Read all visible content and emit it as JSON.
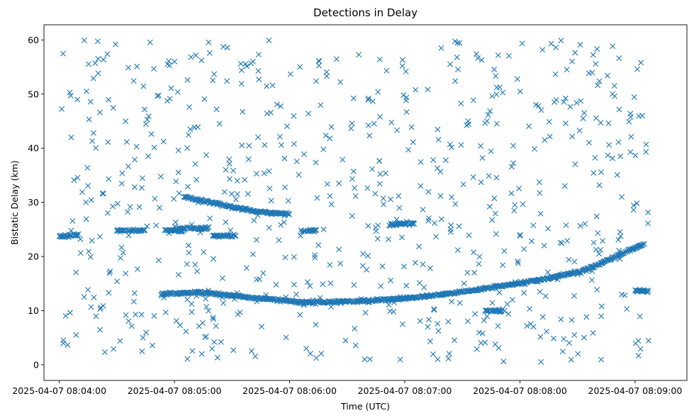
{
  "chart_data": {
    "type": "scatter",
    "title": "Detections in Delay",
    "xlabel": "Time (UTC)",
    "ylabel": "Bistatic Delay (km)",
    "x_type": "datetime",
    "xlim": [
      "2025-04-07 08:03:52",
      "2025-04-07 08:09:27"
    ],
    "ylim": [
      -2.9,
      62.8
    ],
    "x_ticks": [
      "2025-04-07 08:04:00",
      "2025-04-07 08:05:00",
      "2025-04-07 08:06:00",
      "2025-04-07 08:07:00",
      "2025-04-07 08:08:00",
      "2025-04-07 08:09:00"
    ],
    "y_ticks": [
      0,
      10,
      20,
      30,
      40,
      50,
      60
    ],
    "marker": "x",
    "color": "#1f77b4",
    "grid": false,
    "legend": "none",
    "tracks": [
      {
        "time_range": [
          "2025-04-07 08:04:53",
          "2025-04-07 08:09:05"
        ],
        "delay_knots": [
          [
            0,
            13.0
          ],
          [
            20,
            13.4
          ],
          [
            35,
            12.8
          ],
          [
            60,
            12.0
          ],
          [
            75,
            11.5
          ],
          [
            100,
            11.7
          ],
          [
            130,
            12.3
          ],
          [
            160,
            13.6
          ],
          [
            190,
            15.2
          ],
          [
            220,
            17.3
          ],
          [
            252,
            22.4
          ]
        ]
      },
      {
        "time_range": [
          "2025-04-07 08:05:05",
          "2025-04-07 08:06:00"
        ],
        "delay_knots": [
          [
            0,
            31.0
          ],
          [
            23,
            29.3
          ],
          [
            37,
            28.3
          ],
          [
            55,
            27.8
          ]
        ]
      },
      {
        "time_range": [
          "2025-04-07 08:04:00",
          "2025-04-07 08:04:10"
        ],
        "delay_knots": [
          [
            0,
            23.7
          ],
          [
            10,
            24.0
          ]
        ]
      },
      {
        "time_range": [
          "2025-04-07 08:04:30",
          "2025-04-07 08:04:45"
        ],
        "delay_knots": [
          [
            0,
            24.8
          ],
          [
            15,
            24.8
          ]
        ]
      },
      {
        "time_range": [
          "2025-04-07 08:04:55",
          "2025-04-07 08:05:05"
        ],
        "delay_knots": [
          [
            0,
            24.8
          ],
          [
            10,
            24.8
          ]
        ]
      },
      {
        "time_range": [
          "2025-04-07 08:05:02",
          "2025-04-07 08:05:18"
        ],
        "delay_knots": [
          [
            0,
            25.2
          ],
          [
            16,
            25.2
          ]
        ]
      },
      {
        "time_range": [
          "2025-04-07 08:05:20",
          "2025-04-07 08:05:32"
        ],
        "delay_knots": [
          [
            0,
            23.8
          ],
          [
            12,
            23.8
          ]
        ]
      },
      {
        "time_range": [
          "2025-04-07 08:06:06",
          "2025-04-07 08:06:14"
        ],
        "delay_knots": [
          [
            0,
            24.8
          ],
          [
            8,
            24.8
          ]
        ]
      },
      {
        "time_range": [
          "2025-04-07 08:06:52",
          "2025-04-07 08:07:05"
        ],
        "delay_knots": [
          [
            0,
            25.9
          ],
          [
            13,
            26.2
          ]
        ]
      },
      {
        "time_range": [
          "2025-04-07 08:07:42",
          "2025-04-07 08:07:52"
        ],
        "delay_knots": [
          [
            0,
            10.0
          ],
          [
            10,
            10.0
          ]
        ]
      },
      {
        "time_range": [
          "2025-04-07 08:09:00",
          "2025-04-07 08:09:07"
        ],
        "delay_knots": [
          [
            0,
            13.8
          ],
          [
            7,
            13.5
          ]
        ]
      }
    ],
    "clutter": {
      "time_range": [
        "2025-04-07 08:04:00",
        "2025-04-07 08:09:07"
      ],
      "delay_range": [
        0.5,
        60.0
      ],
      "count": 700
    }
  }
}
